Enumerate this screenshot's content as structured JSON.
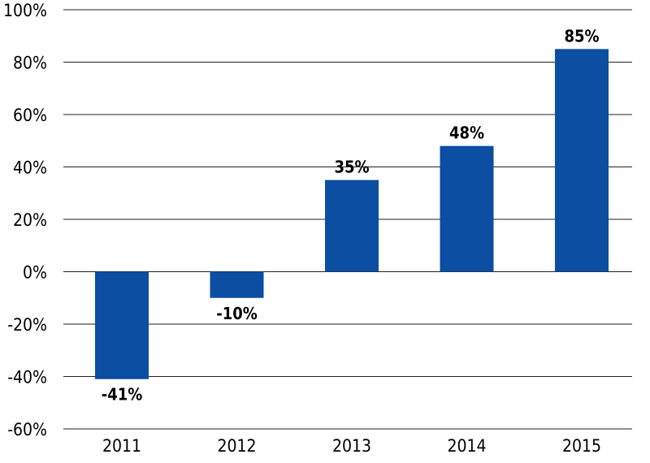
{
  "chart_data": {
    "type": "bar",
    "categories": [
      "2011",
      "2012",
      "2013",
      "2014",
      "2015"
    ],
    "values": [
      -41,
      -10,
      35,
      48,
      85
    ],
    "data_labels": [
      "-41%",
      "-10%",
      "35%",
      "48%",
      "85%"
    ],
    "title": "",
    "xlabel": "",
    "ylabel": "",
    "ylim": [
      -60,
      100
    ],
    "yticks": [
      100,
      80,
      60,
      40,
      20,
      0,
      -20,
      -40,
      -60
    ],
    "ytick_labels": [
      "100%",
      "80%",
      "60%",
      "40%",
      "20%",
      "0%",
      "-20%",
      "-40%",
      "-60%"
    ],
    "grid": true,
    "legend": "none",
    "bar_color": "#0B4EA2"
  }
}
